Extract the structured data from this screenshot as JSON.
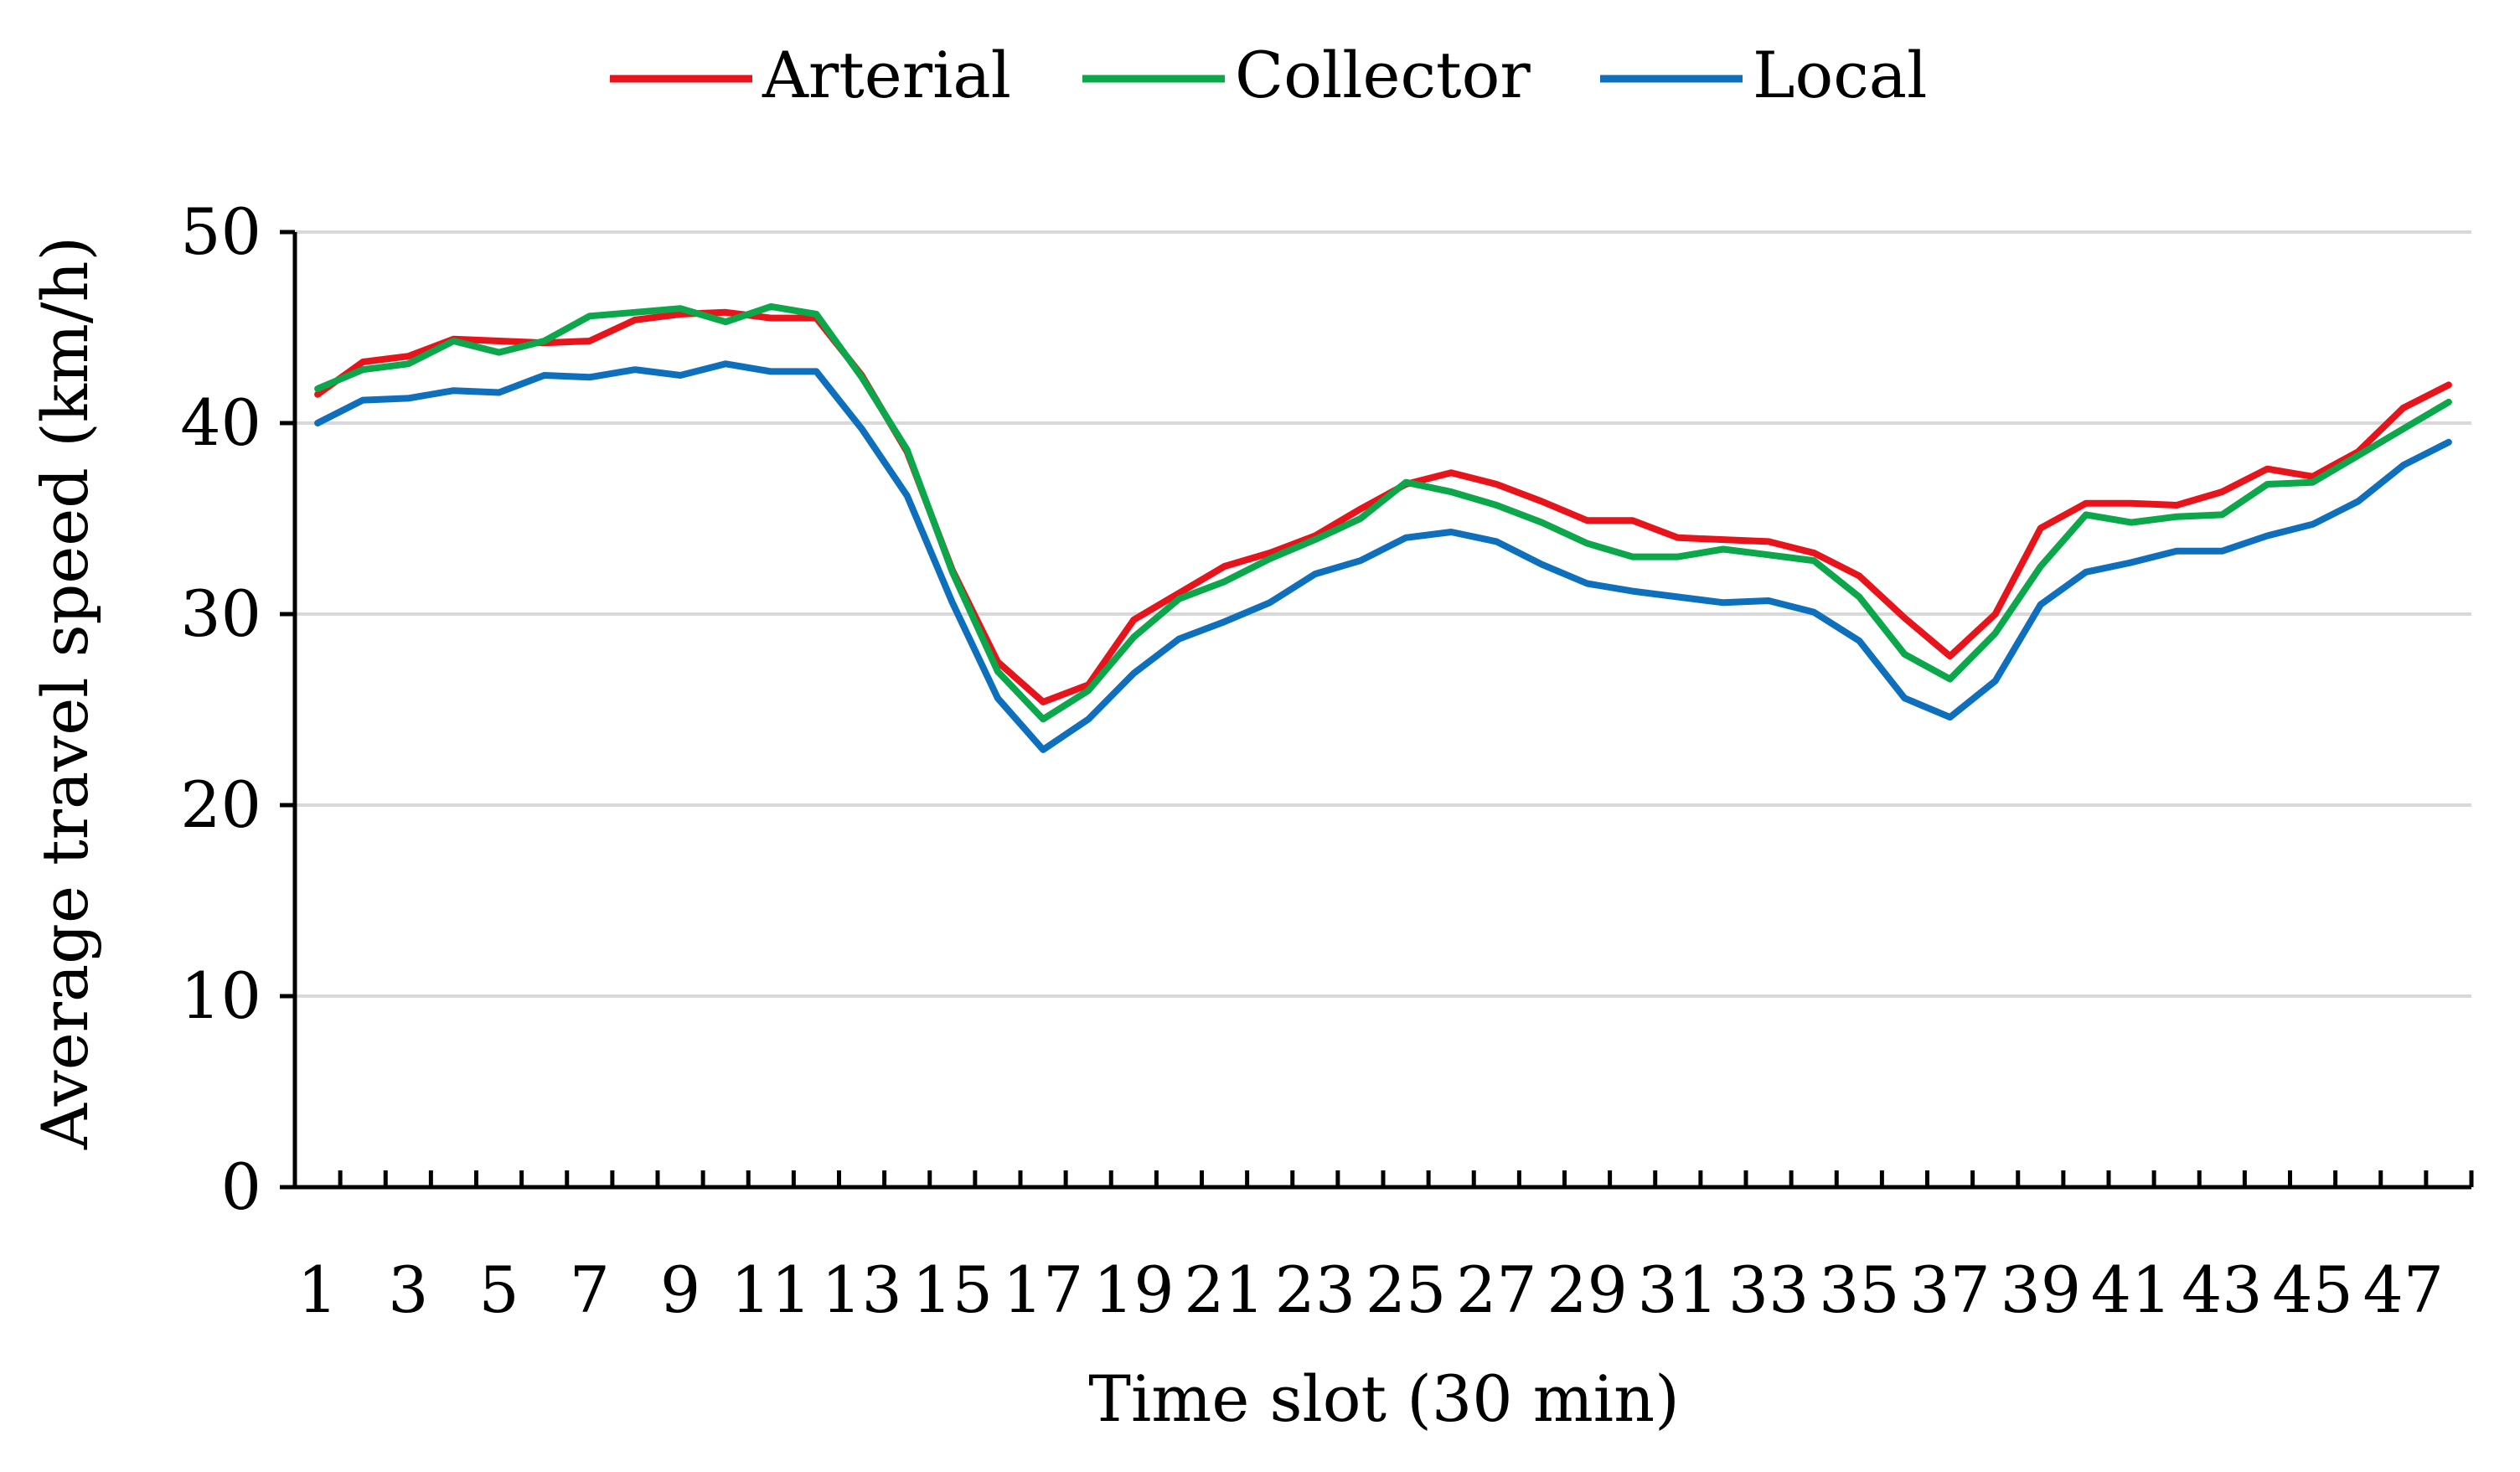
{
  "chart_data": {
    "type": "line",
    "title": "",
    "xlabel": "Time slot (30 min)",
    "ylabel": "Average travel speed (km/h)",
    "ylim": [
      0,
      50
    ],
    "yticks": [
      0,
      10,
      20,
      30,
      40,
      50
    ],
    "xlim": [
      1,
      48
    ],
    "xtick_labels": [
      "1",
      "3",
      "5",
      "7",
      "9",
      "11",
      "13",
      "15",
      "17",
      "19",
      "21",
      "23",
      "25",
      "27",
      "29",
      "31",
      "33",
      "35",
      "37",
      "39",
      "41",
      "43",
      "45",
      "47"
    ],
    "grid": true,
    "legend_position": "top-center",
    "x": [
      1,
      2,
      3,
      4,
      5,
      6,
      7,
      8,
      9,
      10,
      11,
      12,
      13,
      14,
      15,
      16,
      17,
      18,
      19,
      20,
      21,
      22,
      23,
      24,
      25,
      26,
      27,
      28,
      29,
      30,
      31,
      32,
      33,
      34,
      35,
      36,
      37,
      38,
      39,
      40,
      41,
      42,
      43,
      44,
      45,
      46,
      47,
      48
    ],
    "series": [
      {
        "name": "Arterial",
        "color": "#E8141B",
        "values": [
          41.5,
          43.2,
          43.5,
          44.4,
          44.3,
          44.2,
          44.3,
          45.4,
          45.7,
          45.8,
          45.5,
          45.5,
          42.5,
          38.5,
          32.3,
          27.5,
          25.4,
          26.3,
          29.7,
          31.1,
          32.5,
          33.2,
          34.1,
          35.5,
          36.8,
          37.4,
          36.8,
          35.9,
          34.9,
          34.9,
          34.0,
          33.9,
          33.8,
          33.2,
          32.0,
          29.8,
          27.8,
          30.0,
          34.5,
          35.8,
          35.8,
          35.7,
          36.4,
          37.6,
          37.2,
          38.5,
          40.8,
          42.0
        ]
      },
      {
        "name": "Collector",
        "color": "#0BA74A",
        "values": [
          41.8,
          42.8,
          43.1,
          44.3,
          43.7,
          44.3,
          45.6,
          45.8,
          46.0,
          45.3,
          46.1,
          45.7,
          42.4,
          38.6,
          32.2,
          27.0,
          24.5,
          26.0,
          28.8,
          30.8,
          31.7,
          32.9,
          33.9,
          35.0,
          36.9,
          36.4,
          35.7,
          34.8,
          33.7,
          33.0,
          33.0,
          33.4,
          33.1,
          32.8,
          30.9,
          27.9,
          26.6,
          29.0,
          32.5,
          35.2,
          34.8,
          35.1,
          35.2,
          36.8,
          36.9,
          38.3,
          39.7,
          41.1
        ]
      },
      {
        "name": "Local",
        "color": "#0E70BD",
        "values": [
          40.0,
          41.2,
          41.3,
          41.7,
          41.6,
          42.5,
          42.4,
          42.8,
          42.5,
          43.1,
          42.7,
          42.7,
          39.7,
          36.2,
          30.6,
          25.6,
          22.9,
          24.5,
          26.9,
          28.7,
          29.6,
          30.6,
          32.1,
          32.8,
          34.0,
          34.3,
          33.8,
          32.6,
          31.6,
          31.2,
          30.9,
          30.6,
          30.7,
          30.1,
          28.6,
          25.6,
          24.6,
          26.5,
          30.5,
          32.2,
          32.7,
          33.3,
          33.3,
          34.1,
          34.7,
          35.9,
          37.8,
          39.0
        ]
      }
    ]
  }
}
